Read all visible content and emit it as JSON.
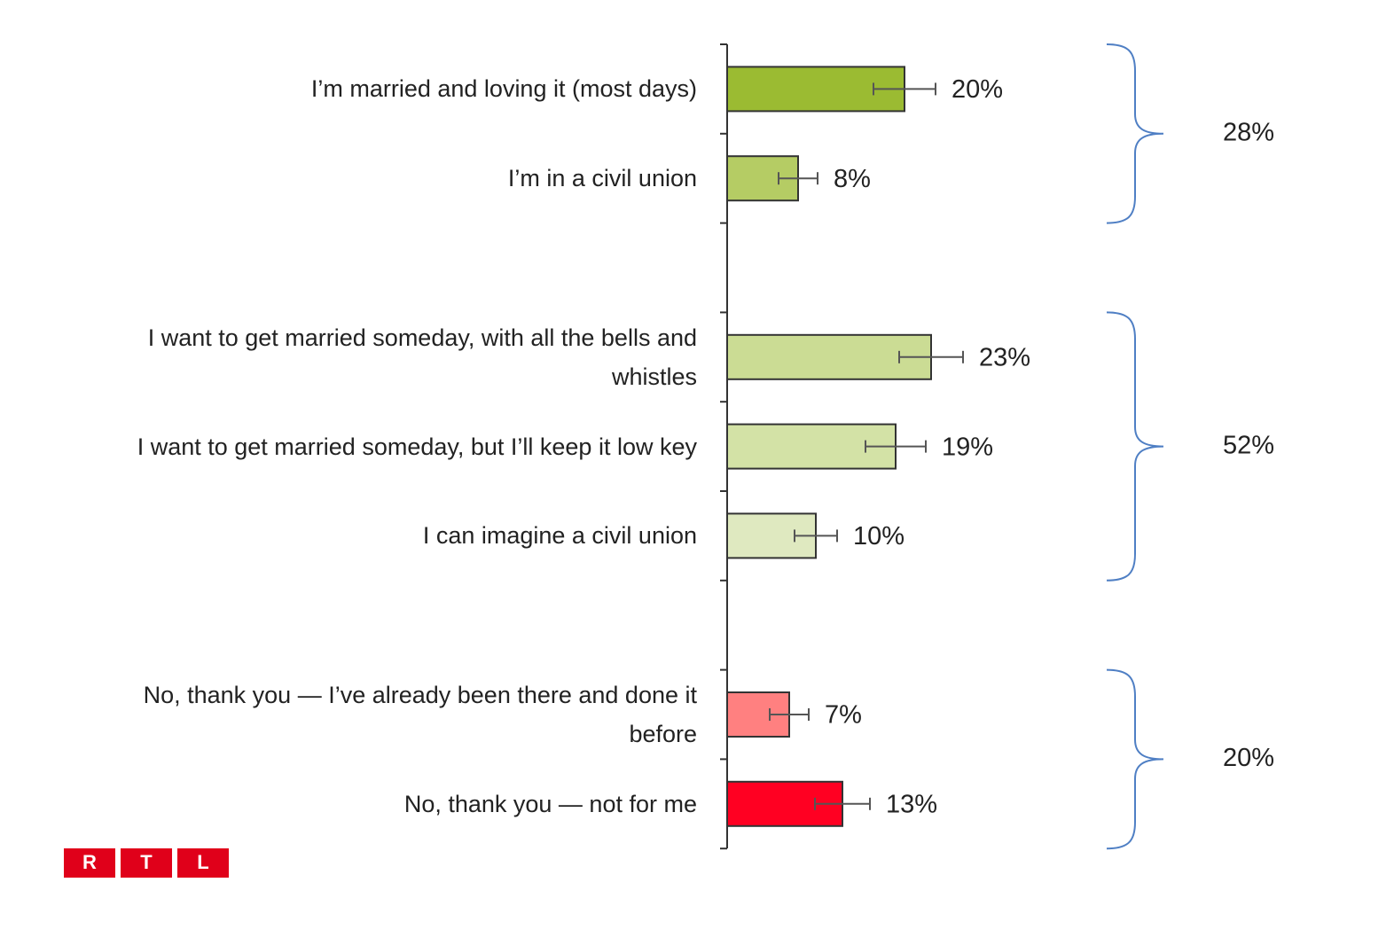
{
  "chart_data": {
    "type": "bar",
    "orientation": "horizontal",
    "categories": [
      "I’m married and loving it (most days)",
      "I’m in a civil union",
      null,
      "I want to get married someday, with all the bells and whistles",
      "I want to get married someday, but I’ll keep it low key",
      "I can imagine a civil union",
      null,
      "No, thank you — I’ve already been there and done it before",
      "No, thank you — not for me"
    ],
    "values": [
      20,
      8,
      null,
      23,
      19,
      10,
      null,
      7,
      13
    ],
    "value_labels": [
      "20%",
      "8%",
      null,
      "23%",
      "19%",
      "10%",
      null,
      "7%",
      "13%"
    ],
    "errors": [
      3.5,
      2.2,
      null,
      3.6,
      3.4,
      2.4,
      null,
      2.2,
      3.1
    ],
    "colors": [
      "#9bbb32",
      "#b5cc64",
      null,
      "#cbdc94",
      "#d3e2a6",
      "#dfe9c0",
      null,
      "#ff8080",
      "#ff0022"
    ],
    "groups": [
      {
        "value": 28,
        "label": "28%"
      },
      {
        "value": 52,
        "label": "52%"
      },
      {
        "value": 20,
        "label": "20%"
      }
    ]
  },
  "logo": {
    "letters": [
      "R",
      "T",
      "L"
    ]
  }
}
